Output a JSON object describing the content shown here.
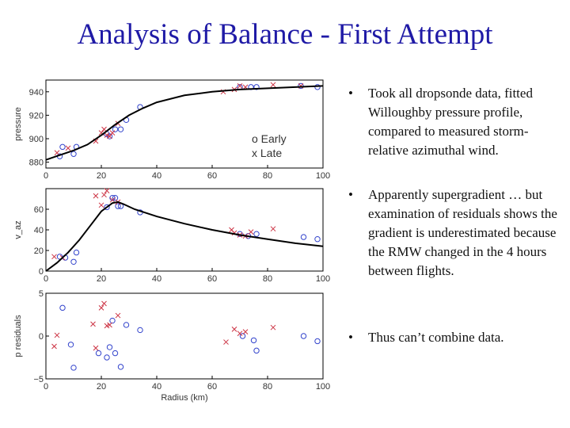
{
  "slide": {
    "title": "Analysis of Balance - First Attempt",
    "bullets": [
      "Took all dropsonde data, fitted Willoughby pressure profile, compared to measured storm-relative azimuthal wind.",
      "Apparently supergradient … but examination of residuals shows the gradient is underestimated because the RMW changed in the 4 hours between flights.",
      "Thus can’t combine data."
    ],
    "bullet_symbol": "•"
  },
  "colors": {
    "title": "#1f1aa6",
    "early": "#3344cc",
    "late": "#cc3344",
    "curve": "#000000"
  },
  "legend": {
    "early": "o Early",
    "late": "x Late"
  },
  "chart_data": [
    {
      "type": "scatter",
      "ylabel": "pressure",
      "xlim": [
        0,
        100
      ],
      "ylim": [
        875,
        950
      ],
      "xticks": [
        "0",
        "20",
        "40",
        "60",
        "80",
        "100"
      ],
      "yticks": [
        "880",
        "900",
        "920",
        "940"
      ],
      "series": [
        {
          "name": "o Early",
          "marker": "o",
          "x": [
            5,
            6,
            10,
            11,
            22,
            23,
            25,
            27,
            29,
            34,
            70,
            74,
            76,
            92,
            98
          ],
          "y": [
            885,
            893,
            887,
            893,
            904,
            902,
            908,
            908,
            916,
            927,
            944,
            944,
            944,
            945,
            944
          ]
        },
        {
          "name": "x Late",
          "marker": "x",
          "x": [
            4,
            8,
            18,
            20,
            21,
            22,
            23,
            24,
            26,
            64,
            68,
            70,
            72,
            82,
            92
          ],
          "y": [
            888,
            892,
            898,
            905,
            908,
            903,
            902,
            905,
            913,
            940,
            942,
            945,
            944,
            946,
            945
          ]
        },
        {
          "name": "fit",
          "marker": "line",
          "x": [
            0,
            5,
            10,
            15,
            20,
            25,
            30,
            35,
            40,
            50,
            60,
            70,
            80,
            90,
            100
          ],
          "y": [
            882,
            886,
            890,
            895,
            903,
            912,
            920,
            926,
            931,
            937,
            940,
            942,
            943,
            944,
            945
          ]
        }
      ]
    },
    {
      "type": "scatter",
      "ylabel": "v_az",
      "xlim": [
        0,
        100
      ],
      "ylim": [
        0,
        80
      ],
      "xticks": [
        "0",
        "20",
        "40",
        "60",
        "80",
        "100"
      ],
      "yticks": [
        "0",
        "20",
        "40",
        "60"
      ],
      "series": [
        {
          "name": "o Early",
          "marker": "o",
          "x": [
            5,
            7,
            10,
            11,
            22,
            24,
            25,
            26,
            27,
            34,
            70,
            73,
            76,
            93,
            98
          ],
          "y": [
            14,
            13,
            9,
            18,
            62,
            71,
            71,
            63,
            63,
            57,
            36,
            34,
            36,
            33,
            31
          ]
        },
        {
          "name": "x Late",
          "marker": "x",
          "x": [
            3,
            6,
            18,
            20,
            21,
            22,
            24,
            26,
            67,
            68,
            70,
            72,
            74,
            82
          ],
          "y": [
            14,
            13,
            73,
            64,
            74,
            78,
            69,
            67,
            40,
            37,
            35,
            34,
            38,
            41
          ]
        },
        {
          "name": "fit",
          "marker": "line",
          "x": [
            0,
            4,
            8,
            12,
            16,
            20,
            24,
            26,
            28,
            32,
            40,
            50,
            60,
            70,
            80,
            90,
            100
          ],
          "y": [
            0,
            8,
            18,
            30,
            44,
            58,
            66,
            67,
            65,
            60,
            53,
            46,
            40,
            35,
            31,
            27,
            24
          ]
        }
      ]
    },
    {
      "type": "scatter",
      "ylabel": "p residuals",
      "xlabel": "Radius (km)",
      "xlim": [
        0,
        100
      ],
      "ylim": [
        -5,
        5
      ],
      "xticks": [
        "0",
        "20",
        "40",
        "60",
        "80",
        "100"
      ],
      "yticks": [
        "−5",
        "0",
        "5"
      ],
      "series": [
        {
          "name": "o Early",
          "marker": "o",
          "x": [
            6,
            9,
            10,
            19,
            22,
            23,
            24,
            25,
            27,
            29,
            34,
            71,
            75,
            76,
            93,
            98
          ],
          "y": [
            3.3,
            -1.0,
            -3.7,
            -2.0,
            -2.5,
            -1.3,
            1.8,
            -2.0,
            -3.6,
            1.3,
            0.7,
            0.0,
            -0.5,
            -1.7,
            0.0,
            -0.6
          ],
          "marker_size": [
            1,
            1,
            1,
            1,
            1,
            1,
            1,
            1,
            1,
            1,
            1,
            1,
            1,
            1,
            1,
            1
          ]
        },
        {
          "name": "x Late",
          "marker": "x",
          "x": [
            3,
            4,
            17,
            18,
            20,
            21,
            22,
            23,
            26,
            65,
            68,
            70,
            72,
            82
          ],
          "y": [
            -1.2,
            0.1,
            1.4,
            -1.4,
            3.3,
            3.8,
            1.2,
            1.3,
            2.4,
            -0.7,
            0.8,
            0.3,
            0.5,
            1.0
          ]
        }
      ]
    }
  ]
}
